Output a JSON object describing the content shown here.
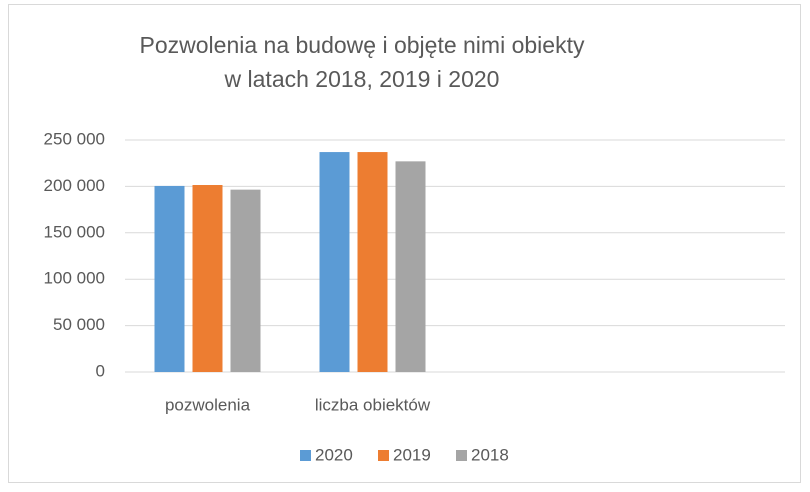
{
  "chart_data": {
    "type": "bar",
    "title": [
      "Pozwolenia na budowę i objęte nimi obiekty",
      "w latach 2018, 2019 i 2020"
    ],
    "categories": [
      "pozwolenia",
      "liczba obiektów",
      null,
      null
    ],
    "series": [
      {
        "name": "2020",
        "color": "#5b9bd5",
        "values": [
          200500,
          237000,
          null,
          null
        ]
      },
      {
        "name": "2019",
        "color": "#ed7d31",
        "values": [
          201500,
          237000,
          null,
          null
        ]
      },
      {
        "name": "2018",
        "color": "#a5a5a5",
        "values": [
          196500,
          227000,
          null,
          null
        ]
      }
    ],
    "ylim": [
      0,
      250000
    ],
    "yticks": [
      {
        "value": 0,
        "label": "0"
      },
      {
        "value": 50000,
        "label": "50 000"
      },
      {
        "value": 100000,
        "label": "100 000"
      },
      {
        "value": 150000,
        "label": "150 000"
      },
      {
        "value": 200000,
        "label": "200 000"
      },
      {
        "value": 250000,
        "label": "250 000"
      }
    ],
    "grid": true,
    "legend": "bottom"
  }
}
